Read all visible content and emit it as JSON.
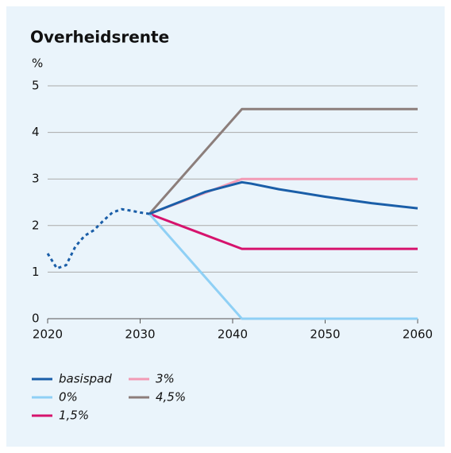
{
  "chart_data": {
    "type": "line",
    "title": "Overheidsrente",
    "y_label": "%",
    "xlim": [
      2020,
      2060
    ],
    "xticks": [
      2020,
      2030,
      2040,
      2050,
      2060
    ],
    "ylim": [
      0,
      5
    ],
    "yticks": [
      0,
      1,
      2,
      3,
      4,
      5
    ],
    "grid": true,
    "series": [
      {
        "color": "#1a5ea8",
        "dashed": true,
        "x": [
          2020,
          2021,
          2022,
          2023,
          2024,
          2025,
          2026,
          2027,
          2028,
          2029,
          2030,
          2031
        ],
        "values": [
          1.4,
          1.08,
          1.15,
          1.55,
          1.78,
          1.9,
          2.1,
          2.28,
          2.35,
          2.32,
          2.28,
          2.25
        ]
      },
      {
        "name": "basispad",
        "color": "#1a5ea8",
        "x": [
          2031,
          2037,
          2041,
          2042,
          2045,
          2050,
          2055,
          2060
        ],
        "values": [
          2.25,
          2.72,
          2.93,
          2.9,
          2.78,
          2.62,
          2.48,
          2.37
        ]
      },
      {
        "name": "0%",
        "color": "#8fd0f5",
        "x": [
          2031,
          2041,
          2060
        ],
        "values": [
          2.25,
          0,
          0
        ]
      },
      {
        "name": "1,5%",
        "color": "#d6136d",
        "x": [
          2031,
          2041,
          2060
        ],
        "values": [
          2.25,
          1.5,
          1.5
        ]
      },
      {
        "name": "3%",
        "color": "#f29bb5",
        "x": [
          2031,
          2041,
          2060
        ],
        "values": [
          2.25,
          3,
          3
        ]
      },
      {
        "name": "4,5%",
        "color": "#8c7e7b",
        "x": [
          2031,
          2041,
          2060
        ],
        "values": [
          2.25,
          4.5,
          4.5
        ]
      }
    ]
  }
}
